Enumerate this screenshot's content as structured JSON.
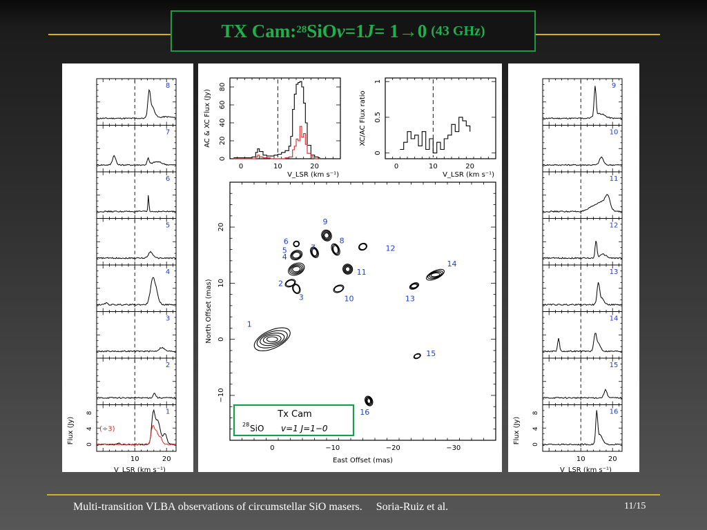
{
  "slide": {
    "title_main": "TX Cam: ",
    "title_sup": "28",
    "title_sio": "SiO ",
    "title_v": "v",
    "title_mid": " =1 ",
    "title_j": "J",
    "title_trans": " = 1→0",
    "title_freq": "(43 GHz)",
    "footer": "Multi-transition VLBA observations of circumstellar SiO masers.     Soria-Ruiz et al.",
    "page": "11/15",
    "colors": {
      "title_green": "#1fb04c",
      "accent_gold": "#d8ad1a",
      "label_blue": "#1a3fd0",
      "red_trace": "#e02020"
    }
  },
  "chart_data": [
    {
      "type": "line",
      "name": "Left spectral column",
      "feature_ids": [
        "8",
        "7",
        "6",
        "5",
        "4",
        "3",
        "2",
        "1"
      ],
      "xlabel": "V_LSR (km s⁻¹)",
      "ylabel": "Flux (Jy)",
      "xticks": [
        10,
        20
      ],
      "yticks": [
        0,
        4,
        8
      ],
      "scaled_label": "(÷3)",
      "vline": 10
    },
    {
      "type": "line",
      "name": "Total spectrum",
      "xlabel": "V_LSR (km s⁻¹)",
      "ylabel": "AC & XC Flux (Jy)",
      "xticks": [
        0,
        10,
        20
      ],
      "yticks": [
        0,
        20,
        40,
        60,
        80
      ],
      "vline": 10,
      "series": [
        {
          "id": "AC",
          "x": [
            -2,
            2,
            3,
            4,
            4.5,
            5,
            6,
            7,
            8,
            9,
            10,
            11,
            12,
            13,
            13.5,
            14,
            14.5,
            15,
            15.5,
            16,
            16.5,
            17,
            17.5,
            18,
            19,
            20,
            21,
            21.5
          ],
          "values": [
            1,
            1,
            2,
            7,
            11,
            8,
            4,
            3,
            3,
            4,
            5,
            7,
            9,
            14,
            25,
            55,
            72,
            83,
            85,
            86,
            80,
            62,
            40,
            15,
            4,
            2,
            1,
            1
          ]
        },
        {
          "id": "XC",
          "x": [
            -2,
            3,
            4,
            4.5,
            5,
            6,
            8,
            10,
            12,
            13,
            14,
            14.5,
            15,
            15.5,
            16,
            16.5,
            17,
            17.5,
            18,
            19,
            20,
            21.5
          ],
          "values": [
            0,
            0,
            2,
            4,
            2,
            1,
            0,
            0,
            1,
            2,
            10,
            14,
            22,
            20,
            36,
            24,
            28,
            16,
            6,
            2,
            0,
            0
          ]
        }
      ]
    },
    {
      "type": "line",
      "name": "Flux ratio",
      "xlabel": "V_LSR (km s⁻¹)",
      "ylabel": "XC/AC Flux ratio",
      "xticks": [
        0,
        10,
        20
      ],
      "yticks": [
        0,
        0.5,
        1
      ],
      "vline": 10,
      "x": [
        1,
        2,
        3,
        4,
        5,
        6,
        7,
        8,
        9,
        10,
        11,
        12,
        13,
        14,
        15,
        16,
        17,
        18,
        19,
        20
      ],
      "values": [
        0.05,
        0.15,
        0.3,
        0.2,
        0.25,
        0.1,
        0.3,
        0.05,
        0.2,
        0,
        0.15,
        0.05,
        0.2,
        0.25,
        0.4,
        0.3,
        0.5,
        0.45,
        0.38,
        0.3
      ]
    },
    {
      "type": "scatter",
      "name": "Contour map",
      "xlabel": "East Offset (mas)",
      "ylabel": "North Offset (mas)",
      "xticks": [
        0,
        -10,
        -20,
        -30
      ],
      "yticks": [
        -10,
        0,
        10,
        20
      ],
      "xlim": [
        7,
        -37
      ],
      "ylim": [
        -18,
        28
      ],
      "legend_line1": "Tx Cam",
      "legend_sup": "28",
      "legend_line2a": "SiO",
      "legend_line2b": "v=1  J=1−0",
      "features": [
        {
          "label": "1",
          "x": 0,
          "y": 0
        },
        {
          "label": "2",
          "x": -3,
          "y": 10
        },
        {
          "label": "3",
          "x": -4,
          "y": 9
        },
        {
          "label": "4",
          "x": -4,
          "y": 12.5
        },
        {
          "label": "5",
          "x": -4,
          "y": 15
        },
        {
          "label": "6",
          "x": -4,
          "y": 17
        },
        {
          "label": "7",
          "x": -7,
          "y": 15.5
        },
        {
          "label": "8",
          "x": -10.5,
          "y": 16
        },
        {
          "label": "9",
          "x": -9,
          "y": 18.5
        },
        {
          "label": "10",
          "x": -11,
          "y": 9
        },
        {
          "label": "11",
          "x": -12.5,
          "y": 12.5
        },
        {
          "label": "12",
          "x": -15,
          "y": 16.5
        },
        {
          "label": "13",
          "x": -23.5,
          "y": 9.5
        },
        {
          "label": "14",
          "x": -27,
          "y": 11.5
        },
        {
          "label": "15",
          "x": -24,
          "y": -3
        },
        {
          "label": "16",
          "x": -16,
          "y": -11
        }
      ]
    },
    {
      "type": "line",
      "name": "Right spectral column",
      "feature_ids": [
        "9",
        "10",
        "11",
        "12",
        "13",
        "14",
        "15",
        "16"
      ],
      "xlabel": "V_LSR (km s⁻¹)",
      "ylabel": "Flux (Jy)",
      "xticks": [
        10,
        20
      ],
      "yticks": [
        0,
        4,
        8
      ],
      "vline": 10
    }
  ]
}
